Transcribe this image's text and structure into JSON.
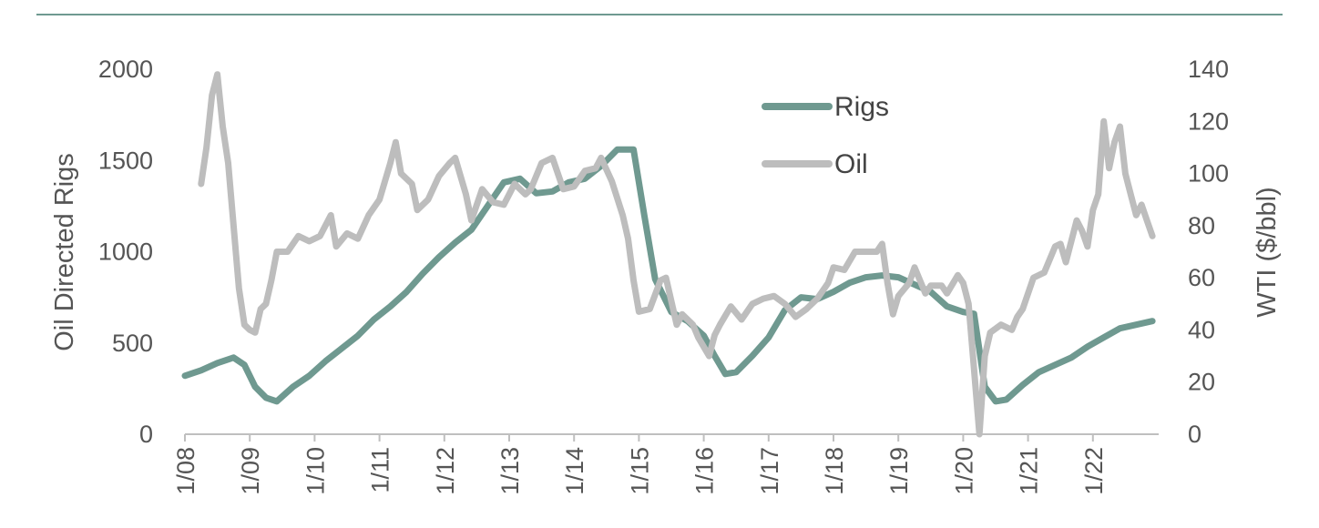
{
  "chart_data": {
    "type": "line",
    "xlabel": "",
    "ylabel_left": "Oil Directed Rigs",
    "ylabel_right": "WTI ($/bbl)",
    "ylim_left": [
      0,
      2000
    ],
    "ylim_right": [
      0,
      140
    ],
    "yticks_left": [
      0,
      500,
      1000,
      1500,
      2000
    ],
    "yticks_right": [
      0,
      20,
      40,
      60,
      80,
      100,
      120,
      140
    ],
    "x_tick_labels": [
      "1/08",
      "1/09",
      "1/10",
      "1/11",
      "1/12",
      "1/13",
      "1/14",
      "1/15",
      "1/16",
      "1/17",
      "1/18",
      "1/19",
      "1/20",
      "1/21",
      "1/22"
    ],
    "xlim": [
      "1/08",
      "12/22"
    ],
    "grid": false,
    "legend_position": "top-center",
    "series": [
      {
        "name": "Rigs",
        "axis": "left",
        "color": "#6f9990",
        "points": [
          [
            "1/08",
            320
          ],
          [
            "4/08",
            350
          ],
          [
            "7/08",
            390
          ],
          [
            "10/08",
            420
          ],
          [
            "12/08",
            380
          ],
          [
            "2/09",
            260
          ],
          [
            "4/09",
            200
          ],
          [
            "6/09",
            180
          ],
          [
            "9/09",
            260
          ],
          [
            "12/09",
            320
          ],
          [
            "3/10",
            400
          ],
          [
            "6/10",
            470
          ],
          [
            "9/10",
            540
          ],
          [
            "12/10",
            630
          ],
          [
            "3/11",
            700
          ],
          [
            "6/11",
            780
          ],
          [
            "9/11",
            880
          ],
          [
            "12/11",
            970
          ],
          [
            "3/12",
            1050
          ],
          [
            "6/12",
            1120
          ],
          [
            "9/12",
            1250
          ],
          [
            "12/12",
            1380
          ],
          [
            "3/13",
            1400
          ],
          [
            "6/13",
            1320
          ],
          [
            "9/13",
            1330
          ],
          [
            "12/13",
            1380
          ],
          [
            "3/14",
            1400
          ],
          [
            "6/14",
            1470
          ],
          [
            "9/14",
            1560
          ],
          [
            "12/14",
            1560
          ],
          [
            "2/15",
            1200
          ],
          [
            "4/15",
            850
          ],
          [
            "7/15",
            670
          ],
          [
            "10/15",
            620
          ],
          [
            "1/16",
            540
          ],
          [
            "3/16",
            430
          ],
          [
            "5/16",
            330
          ],
          [
            "7/16",
            340
          ],
          [
            "10/16",
            430
          ],
          [
            "1/17",
            530
          ],
          [
            "4/17",
            680
          ],
          [
            "7/17",
            750
          ],
          [
            "10/17",
            740
          ],
          [
            "1/18",
            780
          ],
          [
            "4/18",
            830
          ],
          [
            "7/18",
            860
          ],
          [
            "10/18",
            870
          ],
          [
            "1/19",
            860
          ],
          [
            "4/19",
            820
          ],
          [
            "7/19",
            780
          ],
          [
            "10/19",
            700
          ],
          [
            "1/20",
            670
          ],
          [
            "3/20",
            660
          ],
          [
            "5/20",
            260
          ],
          [
            "7/20",
            180
          ],
          [
            "9/20",
            190
          ],
          [
            "12/20",
            270
          ],
          [
            "3/21",
            340
          ],
          [
            "6/21",
            380
          ],
          [
            "9/21",
            420
          ],
          [
            "12/21",
            480
          ],
          [
            "3/22",
            530
          ],
          [
            "6/22",
            580
          ],
          [
            "9/22",
            600
          ],
          [
            "12/22",
            620
          ]
        ]
      },
      {
        "name": "Oil",
        "axis": "right",
        "color": "#bdbdbd",
        "points": [
          [
            "4/08",
            96
          ],
          [
            "5/08",
            110
          ],
          [
            "6/08",
            130
          ],
          [
            "7/08",
            138
          ],
          [
            "8/08",
            118
          ],
          [
            "9/08",
            104
          ],
          [
            "10/08",
            80
          ],
          [
            "11/08",
            56
          ],
          [
            "12/08",
            42
          ],
          [
            "1/09",
            40
          ],
          [
            "2/09",
            39
          ],
          [
            "3/09",
            48
          ],
          [
            "4/09",
            50
          ],
          [
            "5/09",
            59
          ],
          [
            "6/09",
            70
          ],
          [
            "8/09",
            70
          ],
          [
            "10/09",
            76
          ],
          [
            "12/09",
            74
          ],
          [
            "2/10",
            76
          ],
          [
            "4/10",
            84
          ],
          [
            "5/10",
            72
          ],
          [
            "7/10",
            77
          ],
          [
            "9/10",
            75
          ],
          [
            "11/10",
            84
          ],
          [
            "1/11",
            90
          ],
          [
            "3/11",
            104
          ],
          [
            "4/11",
            112
          ],
          [
            "5/11",
            100
          ],
          [
            "7/11",
            96
          ],
          [
            "8/11",
            86
          ],
          [
            "10/11",
            90
          ],
          [
            "12/11",
            99
          ],
          [
            "2/12",
            104
          ],
          [
            "3/12",
            106
          ],
          [
            "5/12",
            92
          ],
          [
            "6/12",
            82
          ],
          [
            "8/12",
            94
          ],
          [
            "10/12",
            89
          ],
          [
            "12/12",
            88
          ],
          [
            "2/13",
            96
          ],
          [
            "4/13",
            92
          ],
          [
            "5/13",
            94
          ],
          [
            "7/13",
            104
          ],
          [
            "9/13",
            106
          ],
          [
            "11/13",
            94
          ],
          [
            "1/14",
            95
          ],
          [
            "3/14",
            101
          ],
          [
            "5/14",
            102
          ],
          [
            "6/14",
            106
          ],
          [
            "8/14",
            97
          ],
          [
            "10/14",
            84
          ],
          [
            "11/14",
            75
          ],
          [
            "12/14",
            59
          ],
          [
            "1/15",
            47
          ],
          [
            "3/15",
            48
          ],
          [
            "5/15",
            59
          ],
          [
            "6/15",
            60
          ],
          [
            "8/15",
            42
          ],
          [
            "9/15",
            46
          ],
          [
            "11/15",
            42
          ],
          [
            "12/15",
            37
          ],
          [
            "2/16",
            30
          ],
          [
            "3/16",
            38
          ],
          [
            "4/16",
            42
          ],
          [
            "6/16",
            49
          ],
          [
            "8/16",
            44
          ],
          [
            "10/16",
            50
          ],
          [
            "12/16",
            52
          ],
          [
            "2/17",
            53
          ],
          [
            "4/17",
            50
          ],
          [
            "6/17",
            45
          ],
          [
            "8/17",
            48
          ],
          [
            "10/17",
            52
          ],
          [
            "12/17",
            58
          ],
          [
            "1/18",
            64
          ],
          [
            "3/18",
            63
          ],
          [
            "5/18",
            70
          ],
          [
            "7/18",
            70
          ],
          [
            "9/18",
            70
          ],
          [
            "10/18",
            73
          ],
          [
            "11/18",
            58
          ],
          [
            "12/18",
            46
          ],
          [
            "1/19",
            53
          ],
          [
            "3/19",
            58
          ],
          [
            "4/19",
            64
          ],
          [
            "6/19",
            54
          ],
          [
            "7/19",
            57
          ],
          [
            "9/19",
            57
          ],
          [
            "10/19",
            54
          ],
          [
            "12/19",
            61
          ],
          [
            "1/20",
            58
          ],
          [
            "2/20",
            50
          ],
          [
            "3/20",
            25
          ],
          [
            "4/20",
            0
          ],
          [
            "5/20",
            30
          ],
          [
            "6/20",
            39
          ],
          [
            "8/20",
            42
          ],
          [
            "10/20",
            40
          ],
          [
            "11/20",
            45
          ],
          [
            "12/20",
            48
          ],
          [
            "2/21",
            60
          ],
          [
            "4/21",
            62
          ],
          [
            "6/21",
            72
          ],
          [
            "7/21",
            73
          ],
          [
            "8/21",
            66
          ],
          [
            "10/21",
            82
          ],
          [
            "11/21",
            78
          ],
          [
            "12/21",
            72
          ],
          [
            "1/22",
            86
          ],
          [
            "2/22",
            92
          ],
          [
            "3/22",
            120
          ],
          [
            "4/22",
            102
          ],
          [
            "5/22",
            112
          ],
          [
            "6/22",
            118
          ],
          [
            "7/22",
            100
          ],
          [
            "8/22",
            92
          ],
          [
            "9/22",
            84
          ],
          [
            "10/22",
            88
          ],
          [
            "11/22",
            82
          ],
          [
            "12/22",
            76
          ]
        ]
      }
    ]
  }
}
